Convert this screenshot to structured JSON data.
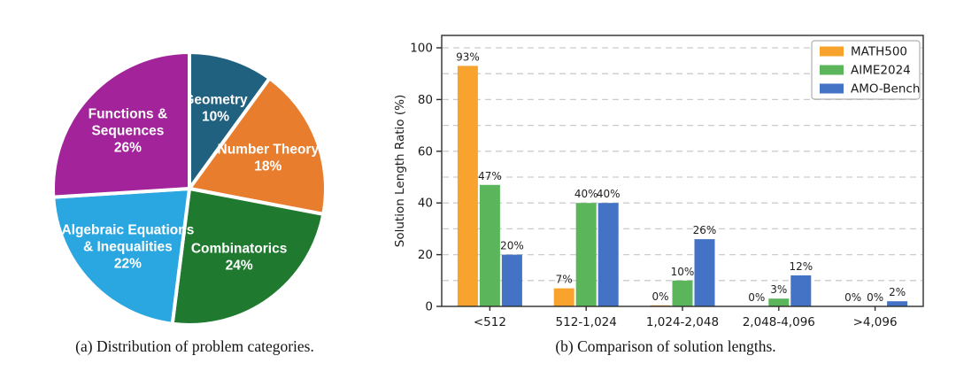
{
  "captions": {
    "a": "(a) Distribution of problem categories.",
    "b": "(b) Comparison of solution lengths."
  },
  "colors": {
    "background": "#ffffff",
    "grid": "#cccccc",
    "spine": "#2d2d2d",
    "tick_text": "#1a1a1a",
    "legend_border": "#b0b0b0",
    "legend_background": "#ffffff"
  },
  "chart_data": [
    {
      "type": "pie",
      "caption": "(a) Distribution of problem categories.",
      "start_angle": "top",
      "direction": "clockwise",
      "slices": [
        {
          "label": "Geometry",
          "value": 10,
          "color": "#20617f",
          "label_lines": [
            "Geometry",
            "10%"
          ]
        },
        {
          "label": "Number Theory",
          "value": 18,
          "color": "#e87d2e",
          "label_lines": [
            "Number Theory",
            "18%"
          ]
        },
        {
          "label": "Combinatorics",
          "value": 24,
          "color": "#1f7a30",
          "label_lines": [
            "Combinatorics",
            "24%"
          ]
        },
        {
          "label": "Algebraic Equations & Inequalities",
          "value": 22,
          "color": "#2aa7e0",
          "label_lines": [
            "Algebraic Equations",
            "& Inequalities",
            "22%"
          ]
        },
        {
          "label": "Functions & Sequences",
          "value": 26,
          "color": "#a2239a",
          "label_lines": [
            "Functions &",
            "Sequences",
            "26%"
          ]
        }
      ]
    },
    {
      "type": "bar",
      "caption": "(b) Comparison of solution lengths.",
      "ylabel": "Solution Length Ratio (%)",
      "ylim": [
        0,
        105
      ],
      "yticks": [
        0,
        20,
        40,
        60,
        80,
        100
      ],
      "grid_step": 10,
      "grid_style": "dashed",
      "legend_position": "upper right",
      "categories": [
        "<512",
        "512-1,024",
        "1,024-2,048",
        "2,048-4,096",
        ">4,096"
      ],
      "series": [
        {
          "name": "MATH500",
          "color": "#f8a32d",
          "values": [
            93,
            7,
            0.4,
            0,
            0
          ],
          "labels": [
            "93%",
            "7%",
            "0%",
            "0%",
            "0%"
          ]
        },
        {
          "name": "AIME2024",
          "color": "#5bb55b",
          "values": [
            47,
            40,
            10,
            3,
            0
          ],
          "labels": [
            "47%",
            "40%",
            "10%",
            "3%",
            "0%"
          ]
        },
        {
          "name": "AMO-Bench",
          "color": "#4472c4",
          "values": [
            20,
            40,
            26,
            12,
            2
          ],
          "labels": [
            "20%",
            "40%",
            "26%",
            "12%",
            "2%"
          ]
        }
      ]
    }
  ]
}
